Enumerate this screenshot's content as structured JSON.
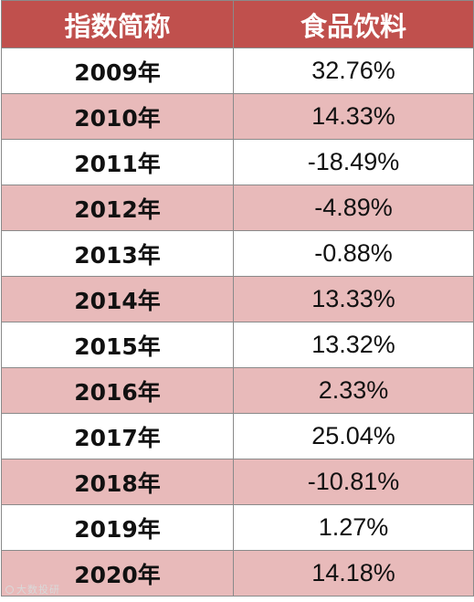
{
  "table": {
    "headers": [
      "指数简称",
      "食品饮料"
    ],
    "rows": [
      {
        "year": "2009年",
        "value": "32.76%"
      },
      {
        "year": "2010年",
        "value": "14.33%"
      },
      {
        "year": "2011年",
        "value": "-18.49%"
      },
      {
        "year": "2012年",
        "value": "-4.89%"
      },
      {
        "year": "2013年",
        "value": "-0.88%"
      },
      {
        "year": "2014年",
        "value": "13.33%"
      },
      {
        "year": "2015年",
        "value": "13.32%"
      },
      {
        "year": "2016年",
        "value": "2.33%"
      },
      {
        "year": "2017年",
        "value": "25.04%"
      },
      {
        "year": "2018年",
        "value": "-10.81%"
      },
      {
        "year": "2019年",
        "value": "1.27%"
      },
      {
        "year": "2020年",
        "value": "14.18%"
      }
    ]
  },
  "colors": {
    "header_bg": "#c0504d",
    "row_alt_bg": "#e8baba",
    "row_bg": "#ffffff"
  },
  "watermark": {
    "text": "大数投研",
    "icon": "watermark-logo-icon"
  }
}
